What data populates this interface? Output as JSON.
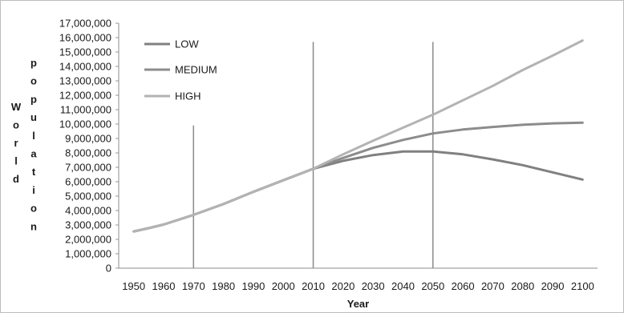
{
  "chart_data": {
    "type": "line",
    "xlabel": "Year",
    "ylabel_chars": [
      "W",
      "o",
      "r",
      "l",
      "d"
    ],
    "ylabel_chars2": [
      "p",
      "o",
      "p",
      "u",
      "l",
      "a",
      "t",
      "i",
      "o",
      "n"
    ],
    "ylim": [
      0,
      17000000
    ],
    "y_ticks": [
      "0",
      "1,000,000",
      "2,000,000",
      "3,000,000",
      "4,000,000",
      "5,000,000",
      "6,000,000",
      "7,000,000",
      "8,000,000",
      "9,000,000",
      "10,000,000",
      "11,000,000",
      "12,000,000",
      "13,000,000",
      "14,000,000",
      "15,000,000",
      "16,000,000",
      "17,000,000"
    ],
    "x_ticks": [
      "1950",
      "1960",
      "1970",
      "1980",
      "1990",
      "2000",
      "2010",
      "2020",
      "2030",
      "2040",
      "2050",
      "2060",
      "2070",
      "2080",
      "2090",
      "2100"
    ],
    "legend_position": "top-left",
    "colors": {
      "low": "#808080",
      "medium": "#8c8c8c",
      "high": "#b3b3b3",
      "vline": "#8a8a8a"
    },
    "series": [
      {
        "name": "LOW",
        "key": "low",
        "x": [
          1950,
          1955,
          1960,
          1970,
          1980,
          1990,
          2000,
          2010,
          2020,
          2030,
          2040,
          2050,
          2060,
          2070,
          2080,
          2090,
          2100
        ],
        "values": [
          2550000,
          2780000,
          3030000,
          3700000,
          4450000,
          5300000,
          6100000,
          6900000,
          7450000,
          7850000,
          8100000,
          8100000,
          7900000,
          7550000,
          7150000,
          6650000,
          6150000
        ]
      },
      {
        "name": "MEDIUM",
        "key": "medium",
        "x": [
          1950,
          1955,
          1960,
          1970,
          1980,
          1990,
          2000,
          2010,
          2020,
          2030,
          2040,
          2050,
          2060,
          2070,
          2080,
          2090,
          2100
        ],
        "values": [
          2550000,
          2780000,
          3030000,
          3700000,
          4450000,
          5300000,
          6100000,
          6900000,
          7650000,
          8350000,
          8900000,
          9350000,
          9620000,
          9800000,
          9950000,
          10050000,
          10100000
        ]
      },
      {
        "name": "HIGH",
        "key": "high",
        "x": [
          1950,
          1955,
          1960,
          1970,
          1980,
          1990,
          2000,
          2010,
          2020,
          2030,
          2040,
          2050,
          2060,
          2070,
          2080,
          2090,
          2100
        ],
        "values": [
          2550000,
          2780000,
          3030000,
          3700000,
          4450000,
          5300000,
          6100000,
          6900000,
          7900000,
          8850000,
          9750000,
          10650000,
          11650000,
          12650000,
          13750000,
          14750000,
          15800000
        ]
      }
    ],
    "vertical_lines": [
      {
        "x": 1970,
        "top": 9900000
      },
      {
        "x": 2010,
        "top": 15700000
      },
      {
        "x": 2050,
        "top": 15700000
      }
    ]
  }
}
